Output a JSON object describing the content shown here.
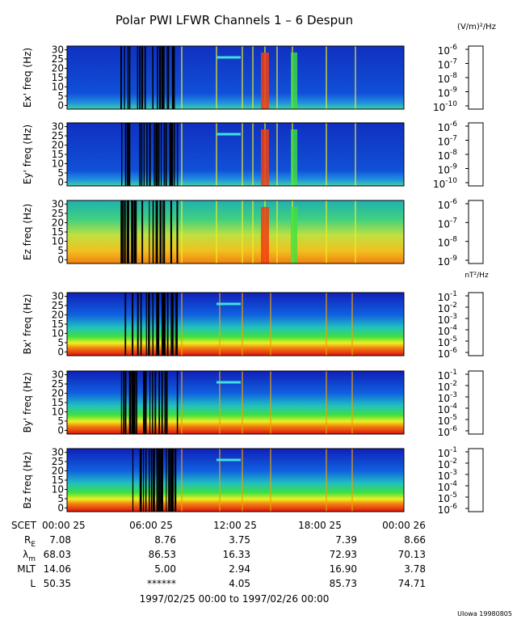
{
  "title": "Polar PWI LFWR Channels 1 – 6 Despun",
  "units": [
    "(V/m)²/Hz",
    "nT²/Hz"
  ],
  "panels": [
    {
      "ylabel": "Ex' freq (Hz)",
      "ylim": [
        -2,
        32
      ],
      "yticks": [
        0,
        5,
        10,
        15,
        20,
        25,
        30
      ],
      "kind": "E",
      "colorbar": [
        {
          "base": "10",
          "exp": "-6"
        },
        {
          "base": "10",
          "exp": "-7"
        },
        {
          "base": "10",
          "exp": "-8"
        },
        {
          "base": "10",
          "exp": "-9"
        },
        {
          "base": "10",
          "exp": "-10"
        }
      ]
    },
    {
      "ylabel": "Ey' freq (Hz)",
      "ylim": [
        -2,
        32
      ],
      "yticks": [
        0,
        5,
        10,
        15,
        20,
        25,
        30
      ],
      "kind": "E",
      "colorbar": [
        {
          "base": "10",
          "exp": "-6"
        },
        {
          "base": "10",
          "exp": "-7"
        },
        {
          "base": "10",
          "exp": "-8"
        },
        {
          "base": "10",
          "exp": "-9"
        },
        {
          "base": "10",
          "exp": "-10"
        }
      ]
    },
    {
      "ylabel": "Ez freq (Hz)",
      "ylim": [
        -2,
        32
      ],
      "yticks": [
        0,
        5,
        10,
        15,
        20,
        25,
        30
      ],
      "kind": "Ez",
      "colorbar": [
        {
          "base": "10",
          "exp": "-6"
        },
        {
          "base": "10",
          "exp": "-7"
        },
        {
          "base": "10",
          "exp": "-8"
        },
        {
          "base": "10",
          "exp": "-9"
        }
      ]
    },
    {
      "ylabel": "Bx' freq (Hz)",
      "ylim": [
        -2,
        32
      ],
      "yticks": [
        0,
        5,
        10,
        15,
        20,
        25,
        30
      ],
      "kind": "B",
      "colorbar": [
        {
          "base": "10",
          "exp": "-1"
        },
        {
          "base": "10",
          "exp": "-2"
        },
        {
          "base": "10",
          "exp": "-3"
        },
        {
          "base": "10",
          "exp": "-4"
        },
        {
          "base": "10",
          "exp": "-5"
        },
        {
          "base": "10",
          "exp": "-6"
        }
      ]
    },
    {
      "ylabel": "By' freq (Hz)",
      "ylim": [
        -2,
        32
      ],
      "yticks": [
        0,
        5,
        10,
        15,
        20,
        25,
        30
      ],
      "kind": "B",
      "colorbar": [
        {
          "base": "10",
          "exp": "-1"
        },
        {
          "base": "10",
          "exp": "-2"
        },
        {
          "base": "10",
          "exp": "-3"
        },
        {
          "base": "10",
          "exp": "-4"
        },
        {
          "base": "10",
          "exp": "-5"
        },
        {
          "base": "10",
          "exp": "-6"
        }
      ]
    },
    {
      "ylabel": "Bz freq (Hz)",
      "ylim": [
        -2,
        32
      ],
      "yticks": [
        0,
        5,
        10,
        15,
        20,
        25,
        30
      ],
      "kind": "B",
      "colorbar": [
        {
          "base": "10",
          "exp": "-1"
        },
        {
          "base": "10",
          "exp": "-2"
        },
        {
          "base": "10",
          "exp": "-3"
        },
        {
          "base": "10",
          "exp": "-4"
        },
        {
          "base": "10",
          "exp": "-5"
        },
        {
          "base": "10",
          "exp": "-6"
        }
      ]
    }
  ],
  "xaxis": {
    "label": "SCET",
    "ticks": [
      "00:00 25",
      "06:00 25",
      "12:00 25",
      "18:00 25",
      "00:00 26"
    ]
  },
  "ephemeris": [
    {
      "label": {
        "base": "R",
        "sub": "E"
      },
      "values": [
        "7.08",
        "8.76",
        "3.75",
        "7.39",
        "8.66"
      ]
    },
    {
      "label": {
        "base": "λ",
        "sub": "m"
      },
      "values": [
        "68.03",
        "86.53",
        "16.33",
        "72.93",
        "70.13"
      ]
    },
    {
      "label": {
        "base": "MLT",
        "sub": ""
      },
      "values": [
        "14.06",
        "5.00",
        "2.94",
        "16.90",
        "3.78"
      ]
    },
    {
      "label": {
        "base": "L",
        "sub": ""
      },
      "values": [
        "50.35",
        "******",
        "4.05",
        "85.73",
        "74.71"
      ]
    }
  ],
  "date_range": "1997/02/25 00:00 to 1997/02/26 00:00",
  "footer": "UIowa 19980805"
}
